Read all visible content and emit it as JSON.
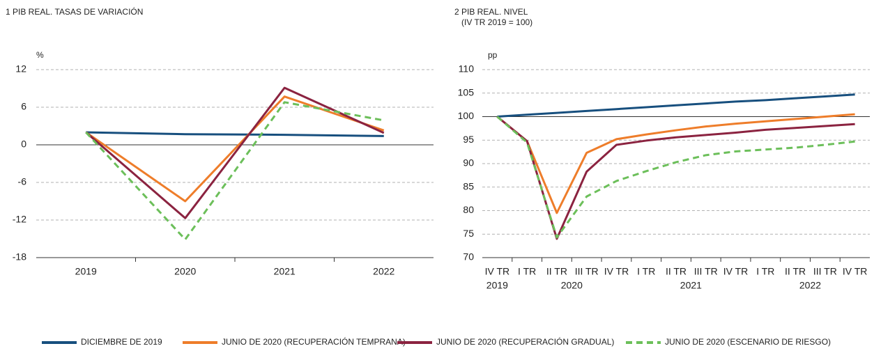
{
  "chart_data": [
    {
      "type": "line",
      "title": "1  PIB REAL. TASAS DE VARIACIÓN",
      "y_label": "%",
      "categories": [
        "2019",
        "2020",
        "2021",
        "2022"
      ],
      "ylim": [
        -18,
        12
      ],
      "yticks": [
        -18,
        -12,
        -6,
        0,
        6,
        12
      ],
      "grid": true,
      "baseline": 0,
      "series": [
        {
          "name": "DICIEMBRE DE 2019",
          "color": "#174f7e",
          "dash": false,
          "values": [
            2.0,
            1.7,
            1.6,
            1.4
          ]
        },
        {
          "name": "JUNIO DE 2020 (RECUPERACIÓN TEMPRANA)",
          "color": "#ee7d2a",
          "dash": false,
          "values": [
            2.0,
            -9.0,
            7.7,
            2.3
          ]
        },
        {
          "name": "JUNIO DE 2020 (RECUPERACIÓN GRADUAL)",
          "color": "#8b2340",
          "dash": false,
          "values": [
            2.0,
            -11.7,
            9.1,
            1.9
          ]
        },
        {
          "name": "JUNIO DE 2020 (ESCENARIO DE RIESGO)",
          "color": "#6cbf5a",
          "dash": true,
          "values": [
            2.0,
            -15.1,
            6.8,
            3.9
          ]
        }
      ]
    },
    {
      "type": "line",
      "title": "2  PIB REAL. NIVEL",
      "subtitle": "(IV TR 2019 = 100)",
      "y_label": "pp",
      "categories": [
        "IV TR",
        "I TR",
        "II TR",
        "III TR",
        "IV TR",
        "I TR",
        "II TR",
        "III TR",
        "IV TR",
        "I TR",
        "II TR",
        "III TR",
        "IV TR"
      ],
      "years": [
        {
          "label": "2019",
          "span": [
            0,
            0
          ]
        },
        {
          "label": "2020",
          "span": [
            1,
            4
          ]
        },
        {
          "label": "2021",
          "span": [
            5,
            8
          ]
        },
        {
          "label": "2022",
          "span": [
            9,
            12
          ]
        }
      ],
      "ylim": [
        70,
        110
      ],
      "yticks": [
        70,
        75,
        80,
        85,
        90,
        95,
        100,
        105,
        110
      ],
      "grid": true,
      "baseline": 100,
      "series": [
        {
          "color": "#174f7e",
          "dash": false,
          "values": [
            100,
            100.4,
            100.8,
            101.2,
            101.6,
            102.0,
            102.4,
            102.8,
            103.2,
            103.5,
            103.9,
            104.3,
            104.7
          ]
        },
        {
          "color": "#ee7d2a",
          "dash": false,
          "values": [
            100,
            94.8,
            79.5,
            92.3,
            95.2,
            96.2,
            97.1,
            97.9,
            98.5,
            99.0,
            99.5,
            100.0,
            100.5
          ]
        },
        {
          "color": "#8b2340",
          "dash": false,
          "values": [
            100,
            94.8,
            74.0,
            88.3,
            94.0,
            94.9,
            95.6,
            96.1,
            96.6,
            97.2,
            97.6,
            98.0,
            98.4
          ]
        },
        {
          "color": "#6cbf5a",
          "dash": true,
          "values": [
            100,
            94.5,
            74.3,
            83.0,
            86.3,
            88.4,
            90.3,
            91.8,
            92.6,
            93.0,
            93.4,
            94.0,
            94.7
          ]
        }
      ]
    }
  ]
}
